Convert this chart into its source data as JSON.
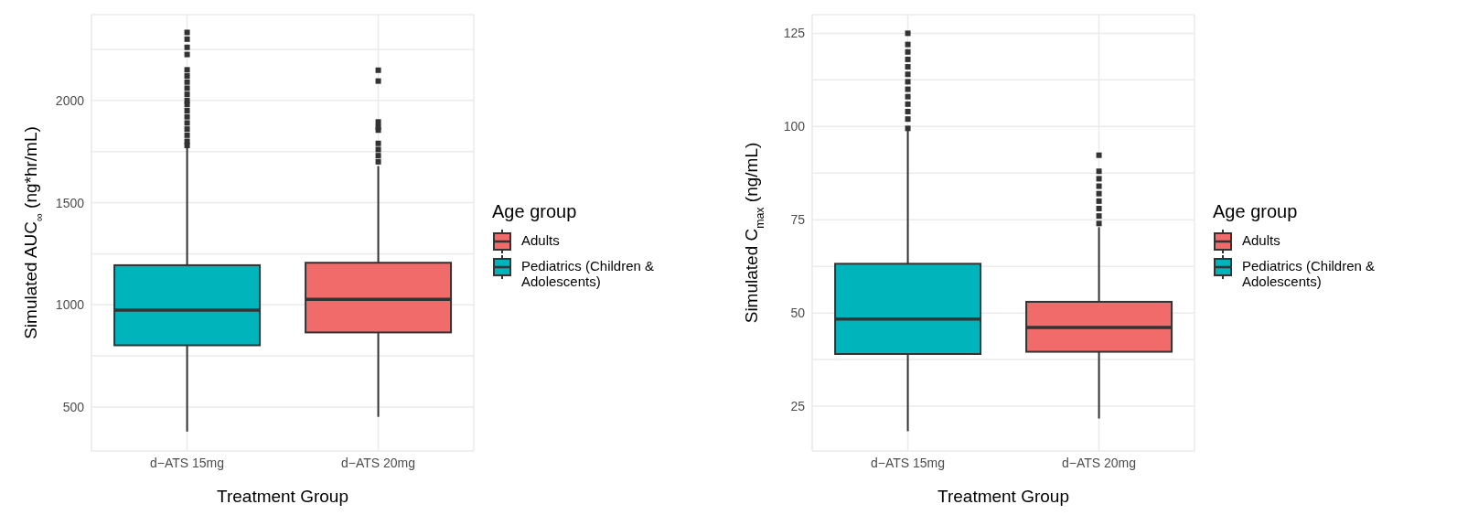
{
  "chart_data": [
    {
      "type": "box",
      "xlabel": "Treatment Group",
      "ylabel": "Simulated AUC$_{∞}$ (ng*hr/mL)",
      "legend_title": "Age group",
      "legend": "right",
      "grid": true,
      "categories": [
        "d−ATS 15mg",
        "d−ATS 20mg"
      ],
      "ylim": [
        285,
        2420
      ],
      "yticks": [
        500,
        {
          "value": 750,
          "label": null
        },
        1000,
        {
          "value": 1250,
          "label": null
        },
        1500,
        {
          "value": 1750,
          "label": null
        },
        2000,
        {
          "value": 2250,
          "label": null
        }
      ],
      "series": [
        {
          "name": "Adults",
          "color": "#f06b6a",
          "boxes": [
            null,
            {
              "low": 452,
              "q1": 865,
              "median": 1027,
              "q3": 1206,
              "high": 1679,
              "outliers": [
                1700,
                1730,
                1760,
                1790,
                1855,
                1870,
                1895,
                2095,
                2148
              ]
            }
          ]
        },
        {
          "name": "Pediatrics (Children & Adolescents)",
          "color": "#00b4bc",
          "boxes": [
            {
              "low": 380,
              "q1": 802,
              "median": 974,
              "q3": 1194,
              "high": 1767,
              "outliers": [
                1780,
                1800,
                1830,
                1860,
                1890,
                1920,
                1950,
                1980,
                2000,
                2030,
                2060,
                2090,
                2120,
                2150,
                2225,
                2260,
                2300,
                2333
              ]
            },
            null
          ]
        }
      ]
    },
    {
      "type": "box",
      "xlabel": "Treatment Group",
      "ylabel": "Simulated C$_{max}$  (ng/mL)",
      "legend_title": "Age group",
      "legend": "right",
      "grid": true,
      "categories": [
        "d−ATS 15mg",
        "d−ATS 20mg"
      ],
      "ylim": [
        13,
        130
      ],
      "yticks": [
        25,
        {
          "value": 37.5,
          "label": null
        },
        50,
        {
          "value": 62.5,
          "label": null
        },
        75,
        {
          "value": 87.5,
          "label": null
        },
        100,
        {
          "value": 112.5,
          "label": null
        },
        125
      ],
      "series": [
        {
          "name": "Adults",
          "color": "#f06b6a",
          "boxes": [
            null,
            {
              "low": 21.7,
              "q1": 39.6,
              "median": 46.1,
              "q3": 53,
              "high": 73,
              "outliers": [
                74,
                76,
                78,
                80,
                82,
                84,
                86,
                88,
                92.3
              ]
            }
          ]
        },
        {
          "name": "Pediatrics (Children & Adolescents)",
          "color": "#00b4bc",
          "boxes": [
            {
              "low": 18.3,
              "q1": 39,
              "median": 48.4,
              "q3": 63.2,
              "high": 99,
              "outliers": [
                99.5,
                102,
                104,
                106,
                108,
                110,
                112,
                114,
                116,
                118,
                120,
                122,
                125
              ]
            },
            null
          ]
        }
      ]
    }
  ]
}
